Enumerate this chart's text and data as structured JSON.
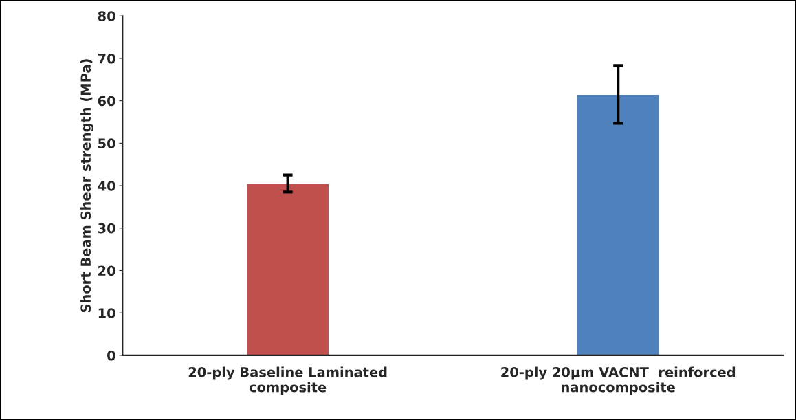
{
  "chart_data": {
    "type": "bar",
    "ylabel": "Short Beam Shear strength (MPa)",
    "categories": [
      "20-ply Baseline Laminated\ncomposite",
      "20-ply 20µm VACNT  reinforced\nnanocomposite"
    ],
    "values": [
      40.5,
      61.5
    ],
    "errors": [
      2.0,
      6.8
    ],
    "colors": [
      "#c0504d",
      "#4f81bd"
    ],
    "ylim": [
      0,
      80
    ],
    "yticks": [
      0,
      10,
      20,
      30,
      40,
      50,
      60,
      70,
      80
    ],
    "grid": false,
    "legend": false
  }
}
